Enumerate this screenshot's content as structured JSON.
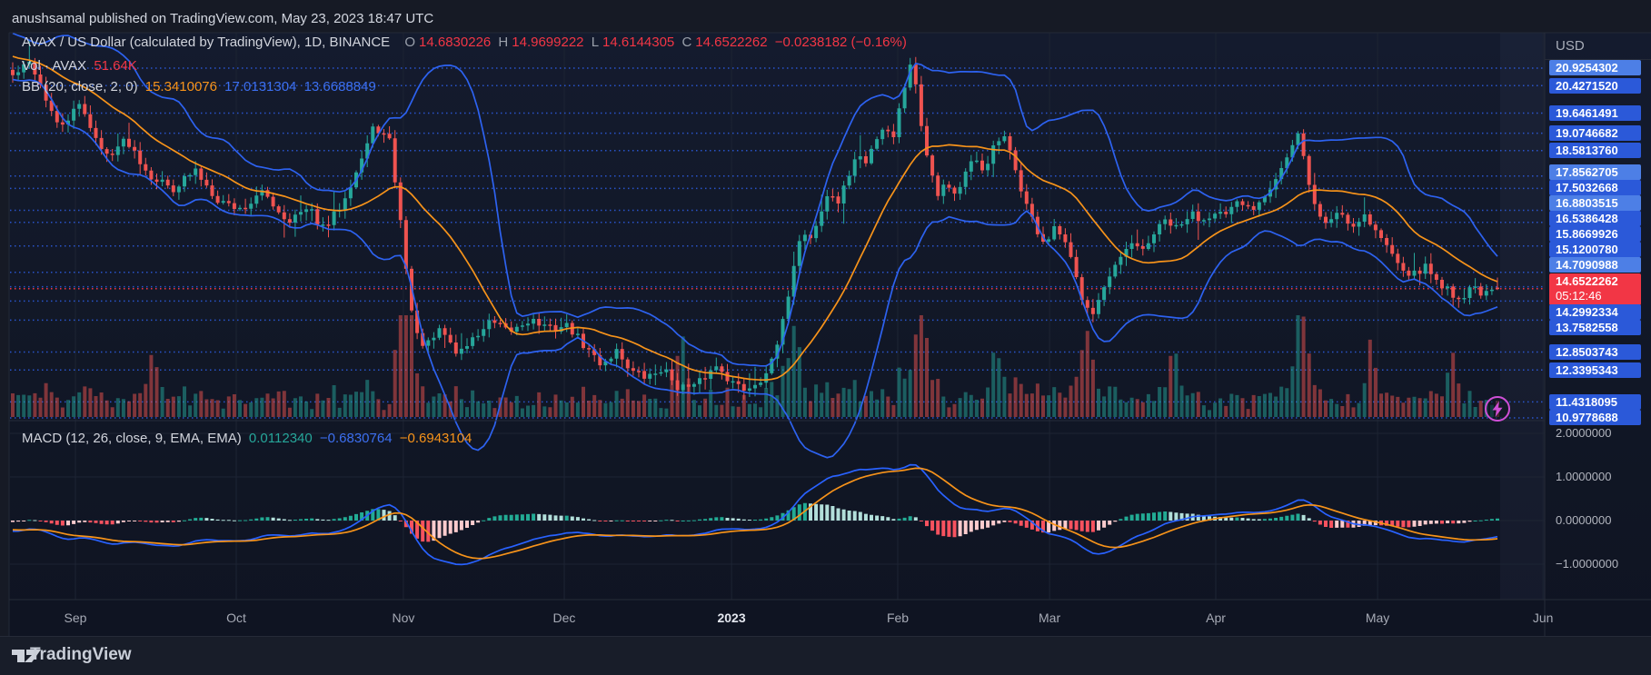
{
  "header": {
    "published": "anushsamal published on TradingView.com, May 23, 2023 18:47 UTC"
  },
  "main_legend": {
    "title": "AVAX / US Dollar (calculated by TradingView), 1D, BINANCE",
    "o_label": "O",
    "o": "14.6830226",
    "h_label": "H",
    "h": "14.9699222",
    "l_label": "L",
    "l": "14.6144305",
    "c_label": "C",
    "c": "14.6522262",
    "change": "−0.0238182 (−0.16%)"
  },
  "vol_legend": {
    "label": "Vol · AVAX",
    "value": "51.64K"
  },
  "bb_legend": {
    "label": "BB (20, close, 2, 0)",
    "basis": "15.3410076",
    "upper": "17.0131304",
    "lower": "13.6688849"
  },
  "macd_legend": {
    "label": "MACD (12, 26, close, 9, EMA, EMA)",
    "hist": "0.0112340",
    "macd": "−0.6830764",
    "signal": "−0.6943104"
  },
  "price_axis": {
    "unit": "USD",
    "labels": [
      {
        "text": "20.9254302",
        "tone": "light"
      },
      {
        "text": "20.4271520",
        "tone": "dark"
      },
      {
        "text": "19.6461491",
        "tone": "dark"
      },
      {
        "text": "19.0746682",
        "tone": "dark"
      },
      {
        "text": "18.5813760",
        "tone": "dark"
      },
      {
        "text": "17.8562705",
        "tone": "light"
      },
      {
        "text": "17.5032668",
        "tone": "dark"
      },
      {
        "text": "16.8803515",
        "tone": "light"
      },
      {
        "text": "16.5386428",
        "tone": "dark"
      },
      {
        "text": "15.8669926",
        "tone": "dark"
      },
      {
        "text": "15.1200780",
        "tone": "dark"
      },
      {
        "text": "14.7090988",
        "tone": "light"
      },
      {
        "text": "14.2992334",
        "tone": "dark"
      },
      {
        "text": "13.7582558",
        "tone": "dark"
      },
      {
        "text": "12.8503743",
        "tone": "dark"
      },
      {
        "text": "12.3395343",
        "tone": "dark"
      },
      {
        "text": "11.4318095",
        "tone": "dark"
      },
      {
        "text": "10.9778688",
        "tone": "dark"
      }
    ],
    "last": {
      "price": "14.6522262",
      "countdown": "05:12:46"
    }
  },
  "macd_axis": [
    "2.0000000",
    "1.0000000",
    "0.0000000",
    "−1.0000000"
  ],
  "time_axis": [
    {
      "label": "Sep",
      "t": 0.0409,
      "bold": false
    },
    {
      "label": "Oct",
      "t": 0.1459,
      "bold": false
    },
    {
      "label": "Nov",
      "t": 0.255,
      "bold": false
    },
    {
      "label": "Dec",
      "t": 0.36,
      "bold": false
    },
    {
      "label": "2023",
      "t": 0.4692,
      "bold": true
    },
    {
      "label": "Feb",
      "t": 0.5777,
      "bold": false
    },
    {
      "label": "Mar",
      "t": 0.6768,
      "bold": false
    },
    {
      "label": "Apr",
      "t": 0.7853,
      "bold": false
    },
    {
      "label": "May",
      "t": 0.8909,
      "bold": false
    },
    {
      "label": "Jun",
      "t": 0.9989,
      "bold": false
    }
  ],
  "footer": {
    "brand": "TradingView"
  },
  "colors": {
    "background": "#121826",
    "grid": "#1d2433",
    "dotted_level": "#2e5fe8",
    "up": "#26a69a",
    "down": "#ef5350",
    "volume_up": "rgba(38,166,154,0.5)",
    "volume_down": "rgba(239,83,80,0.5)",
    "bb_band": "#2d62f0",
    "bb_basis": "#f7931a",
    "macd_line": "#2962ff",
    "macd_signal": "#f7931a",
    "hist_up_strong": "#22ab94",
    "hist_up_weak": "#b2dfda",
    "hist_down_strong": "#f7525f",
    "hist_down_weak": "#fccbcd",
    "axis_label_dark": "#2b59d9",
    "axis_label_light": "#4d7fe6",
    "last_price": "#f23645",
    "text": "#d1d4dc",
    "brand_purple": "#cf4fd6"
  },
  "chart_data": [
    {
      "type": "candlestick",
      "symbol": "AVAX/USD",
      "interval": "1D",
      "exchange": "BINANCE",
      "last": {
        "open": 14.6830226,
        "high": 14.9699222,
        "low": 14.6144305,
        "close": 14.6522262,
        "change": -0.0238182,
        "change_pct": -0.16,
        "countdown": "05:12:46"
      },
      "indicators": {
        "bollinger": {
          "length": 20,
          "source": "close",
          "stdev": 2,
          "offset": 0,
          "basis": 15.3410076,
          "upper": 17.0131304,
          "lower": 13.6688849
        },
        "volume": {
          "current": "51.64K"
        }
      },
      "price_axis_levels": [
        20.9254302,
        20.427152,
        19.6461491,
        19.0746682,
        18.581376,
        17.8562705,
        17.5032668,
        16.8803515,
        16.5386428,
        15.8669926,
        15.120078,
        14.7090988,
        14.2992334,
        13.7582558,
        12.8503743,
        12.3395343,
        11.4318095,
        10.9778688
      ],
      "y_range": [
        9.4,
        21.9
      ],
      "x_categories": [
        "Sep",
        "Oct",
        "Nov",
        "Dec",
        "2023",
        "Feb",
        "Mar",
        "Apr",
        "May",
        "Jun"
      ],
      "close_anchors": [
        [
          0.0,
          20.7
        ],
        [
          0.012,
          21.1
        ],
        [
          0.03,
          19.2
        ],
        [
          0.045,
          19.9
        ],
        [
          0.06,
          18.4
        ],
        [
          0.075,
          18.9
        ],
        [
          0.09,
          17.9
        ],
        [
          0.105,
          17.5
        ],
        [
          0.12,
          18.0
        ],
        [
          0.135,
          17.2
        ],
        [
          0.15,
          16.9
        ],
        [
          0.165,
          17.4
        ],
        [
          0.18,
          16.6
        ],
        [
          0.195,
          16.9
        ],
        [
          0.205,
          16.3
        ],
        [
          0.215,
          17.0
        ],
        [
          0.228,
          18.2
        ],
        [
          0.238,
          19.3
        ],
        [
          0.248,
          18.8
        ],
        [
          0.256,
          16.2
        ],
        [
          0.264,
          13.4
        ],
        [
          0.272,
          13.0
        ],
        [
          0.282,
          13.5
        ],
        [
          0.292,
          12.8
        ],
        [
          0.302,
          13.2
        ],
        [
          0.314,
          13.7
        ],
        [
          0.326,
          13.4
        ],
        [
          0.34,
          13.8
        ],
        [
          0.352,
          13.5
        ],
        [
          0.365,
          13.6
        ],
        [
          0.376,
          13.0
        ],
        [
          0.387,
          12.5
        ],
        [
          0.397,
          12.9
        ],
        [
          0.407,
          12.3
        ],
        [
          0.417,
          12.1
        ],
        [
          0.427,
          12.4
        ],
        [
          0.437,
          11.9
        ],
        [
          0.447,
          11.8
        ],
        [
          0.456,
          12.2
        ],
        [
          0.464,
          12.5
        ],
        [
          0.472,
          12.0
        ],
        [
          0.481,
          11.8
        ],
        [
          0.49,
          12.0
        ],
        [
          0.5,
          12.6
        ],
        [
          0.507,
          13.8
        ],
        [
          0.513,
          15.3
        ],
        [
          0.519,
          16.3
        ],
        [
          0.525,
          16.1
        ],
        [
          0.531,
          16.8
        ],
        [
          0.537,
          17.4
        ],
        [
          0.543,
          17.1
        ],
        [
          0.549,
          17.8
        ],
        [
          0.555,
          18.5
        ],
        [
          0.561,
          18.2
        ],
        [
          0.567,
          18.9
        ],
        [
          0.573,
          19.3
        ],
        [
          0.579,
          19.0
        ],
        [
          0.585,
          20.2
        ],
        [
          0.591,
          21.3
        ],
        [
          0.596,
          19.6
        ],
        [
          0.602,
          18.3
        ],
        [
          0.608,
          17.4
        ],
        [
          0.614,
          17.7
        ],
        [
          0.62,
          17.3
        ],
        [
          0.626,
          17.9
        ],
        [
          0.632,
          18.3
        ],
        [
          0.638,
          18.0
        ],
        [
          0.644,
          18.6
        ],
        [
          0.651,
          19.0
        ],
        [
          0.658,
          18.2
        ],
        [
          0.665,
          17.2
        ],
        [
          0.672,
          16.4
        ],
        [
          0.679,
          15.9
        ],
        [
          0.686,
          16.4
        ],
        [
          0.694,
          15.7
        ],
        [
          0.702,
          14.5
        ],
        [
          0.71,
          14.0
        ],
        [
          0.718,
          14.7
        ],
        [
          0.726,
          15.3
        ],
        [
          0.734,
          15.9
        ],
        [
          0.742,
          15.7
        ],
        [
          0.75,
          16.2
        ],
        [
          0.758,
          16.6
        ],
        [
          0.766,
          16.3
        ],
        [
          0.774,
          16.8
        ],
        [
          0.782,
          16.6
        ],
        [
          0.79,
          16.9
        ],
        [
          0.798,
          16.7
        ],
        [
          0.806,
          17.1
        ],
        [
          0.814,
          16.9
        ],
        [
          0.822,
          17.3
        ],
        [
          0.83,
          17.8
        ],
        [
          0.838,
          18.4
        ],
        [
          0.845,
          19.0
        ],
        [
          0.851,
          17.9
        ],
        [
          0.857,
          16.8
        ],
        [
          0.864,
          16.5
        ],
        [
          0.872,
          16.9
        ],
        [
          0.88,
          16.4
        ],
        [
          0.888,
          16.8
        ],
        [
          0.896,
          16.3
        ],
        [
          0.904,
          15.8
        ],
        [
          0.912,
          15.4
        ],
        [
          0.92,
          15.0
        ],
        [
          0.928,
          15.3
        ],
        [
          0.936,
          14.9
        ],
        [
          0.944,
          14.6
        ],
        [
          0.952,
          14.35
        ],
        [
          0.96,
          14.75
        ],
        [
          0.968,
          14.45
        ],
        [
          0.976,
          14.65
        ]
      ],
      "volume_spikes": [
        [
          0.0925,
          0.5
        ],
        [
          0.2586,
          1.0
        ],
        [
          0.4395,
          0.58
        ],
        [
          0.5136,
          0.45
        ],
        [
          0.5967,
          0.7
        ],
        [
          0.6471,
          0.5
        ],
        [
          0.7064,
          0.62
        ],
        [
          0.7628,
          0.53
        ],
        [
          0.8458,
          0.85
        ],
        [
          0.8932,
          0.5
        ],
        [
          0.9466,
          0.45
        ]
      ]
    },
    {
      "type": "line+histogram",
      "name": "MACD",
      "params": {
        "fast": 12,
        "slow": 26,
        "source": "close",
        "signal": 9,
        "ma_type": "EMA"
      },
      "current": {
        "histogram": 0.011234,
        "macd": -0.6830764,
        "signal": -0.6943104
      },
      "y_ticks": [
        2,
        1,
        0,
        -1
      ]
    }
  ]
}
